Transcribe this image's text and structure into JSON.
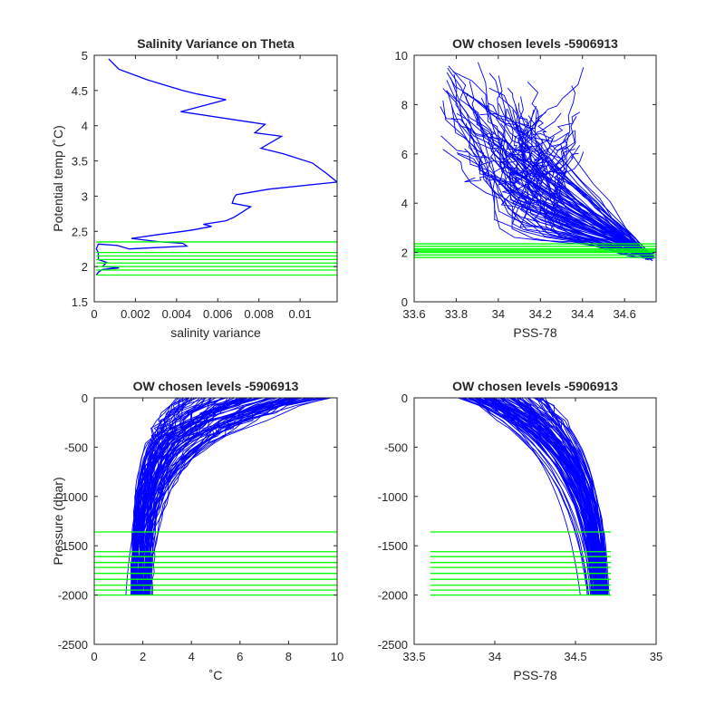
{
  "colors": {
    "profiles": "#0000ff",
    "levels": "#00ff00",
    "axes": "#262626"
  },
  "chart_data": [
    {
      "id": "variance",
      "type": "line",
      "title": "Salinity Variance on Theta",
      "xlabel": "salinity variance",
      "ylabel": "Potential temp (˚C)",
      "xlim": [
        0,
        0.0118
      ],
      "ylim": [
        1.5,
        5
      ],
      "xticks": [
        0,
        0.002,
        0.004,
        0.006,
        0.008,
        0.01
      ],
      "xtick_labels": [
        "0",
        "0.002",
        "0.004",
        "0.006",
        "0.008",
        "0.01"
      ],
      "yticks": [
        1.5,
        2,
        2.5,
        3,
        3.5,
        4,
        4.5,
        5
      ],
      "ytick_labels": [
        "1.5",
        "2",
        "2.5",
        "3",
        "3.5",
        "4",
        "4.5",
        "5"
      ],
      "series": [
        {
          "color": "#0000ff",
          "x": [
            0.0007,
            0.0012,
            0.0026,
            0.0043,
            0.005,
            0.0064,
            0.0042,
            0.0083,
            0.0078,
            0.0091,
            0.0081,
            0.0092,
            0.0106,
            0.0113,
            0.0118,
            0.0085,
            0.0069,
            0.0068,
            0.0067,
            0.0076,
            0.0068,
            0.0064,
            0.0053,
            0.0057,
            0.0048,
            0.0043,
            0.003,
            0.0018,
            0.0032,
            0.0043,
            0.0045,
            0.003,
            0.0017,
            0.0011,
            0.0002,
            0.0001,
            0.0002,
            0.0002,
            0.0002,
            0.0006,
            0.0004,
            0.0012,
            0.0004,
            0.0002,
            0.0001
          ],
          "y": [
            4.95,
            4.8,
            4.65,
            4.5,
            4.45,
            4.37,
            4.2,
            4.02,
            3.9,
            3.85,
            3.68,
            3.6,
            3.47,
            3.32,
            3.2,
            3.1,
            3.02,
            2.98,
            2.9,
            2.85,
            2.7,
            2.65,
            2.6,
            2.57,
            2.52,
            2.5,
            2.45,
            2.4,
            2.35,
            2.33,
            2.29,
            2.27,
            2.25,
            2.3,
            2.32,
            2.25,
            2.2,
            2.14,
            2.1,
            2.06,
            2.0,
            1.98,
            1.96,
            1.92,
            1.88
          ]
        }
      ],
      "levels": [
        1.88,
        1.95,
        2.0,
        2.05,
        2.1,
        2.15,
        2.2,
        2.35
      ],
      "level_xrange": [
        0.0001,
        0.0118
      ]
    },
    {
      "id": "theta-salinity",
      "type": "line",
      "title": "OW chosen levels -5906913",
      "xlabel": "PSS-78",
      "ylabel": "",
      "xlim": [
        33.6,
        34.75
      ],
      "ylim": [
        0,
        10
      ],
      "xticks": [
        33.6,
        33.8,
        34,
        34.2,
        34.4,
        34.6
      ],
      "xtick_labels": [
        "33.6",
        "33.8",
        "34",
        "34.2",
        "34.4",
        "34.6"
      ],
      "yticks": [
        0,
        2,
        4,
        6,
        8,
        10
      ],
      "ytick_labels": [
        "0",
        "2",
        "4",
        "6",
        "8",
        "10"
      ],
      "levels": [
        1.8,
        1.9,
        2.0,
        2.05,
        2.1,
        2.15,
        2.25,
        2.35
      ],
      "level_xrange": [
        33.6,
        34.75
      ]
    },
    {
      "id": "pressure-temp",
      "type": "line",
      "title": "OW chosen levels -5906913",
      "xlabel": "˚C",
      "ylabel": "Pressure (dbar)",
      "xlim": [
        0,
        10
      ],
      "ylim": [
        -2500,
        0
      ],
      "xticks": [
        0,
        2,
        4,
        6,
        8,
        10
      ],
      "xtick_labels": [
        "0",
        "2",
        "4",
        "6",
        "8",
        "10"
      ],
      "yticks": [
        -2500,
        -2000,
        -1500,
        -1000,
        -500,
        0
      ],
      "ytick_labels": [
        "-2500",
        "-2000",
        "-1500",
        "-1000",
        "-500",
        "0"
      ],
      "levels": [
        -1360,
        -1560,
        -1610,
        -1670,
        -1720,
        -1780,
        -1840,
        -1900,
        -1950,
        -2000
      ],
      "level_xrange": [
        0,
        10
      ]
    },
    {
      "id": "pressure-salinity",
      "type": "line",
      "title": "OW chosen levels -5906913",
      "xlabel": "PSS-78",
      "ylabel": "",
      "xlim": [
        33.5,
        35
      ],
      "ylim": [
        -2500,
        0
      ],
      "xticks": [
        33.5,
        34,
        34.5,
        35
      ],
      "xtick_labels": [
        "33.5",
        "34",
        "34.5",
        "35"
      ],
      "yticks": [
        -2500,
        -2000,
        -1500,
        -1000,
        -500,
        0
      ],
      "ytick_labels": [
        "-2500",
        "-2000",
        "-1500",
        "-1000",
        "-500",
        "0"
      ],
      "levels": [
        -1360,
        -1560,
        -1610,
        -1670,
        -1720,
        -1780,
        -1840,
        -1900,
        -1950,
        -2000
      ],
      "level_xrange": [
        33.6,
        34.72
      ]
    }
  ]
}
